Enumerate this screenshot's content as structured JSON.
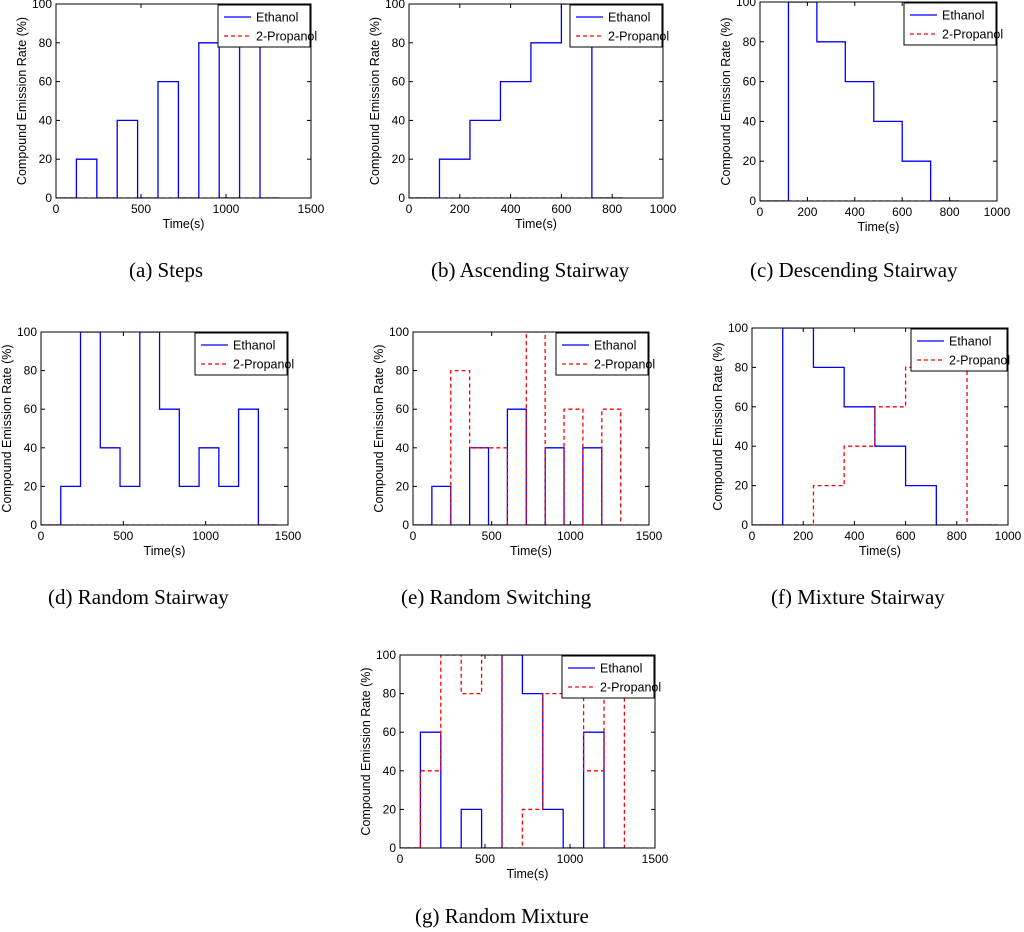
{
  "colors": {
    "ethanol": "#0000ff",
    "propanol": "#ff0000",
    "axis": "#000000"
  },
  "chart_data": [
    {
      "id": "a",
      "type": "line",
      "caption": "(a)  Steps",
      "xlabel": "Time(s)",
      "ylabel": "Compound Emission Rate (%)",
      "xlim": [
        0,
        1500
      ],
      "ylim": [
        0,
        100
      ],
      "xticks": [
        0,
        500,
        1000,
        1500
      ],
      "yticks": [
        0,
        20,
        40,
        60,
        80,
        100
      ],
      "legend": {
        "position": "top-right"
      },
      "series": [
        {
          "name": "Ethanol",
          "style": "solid",
          "points": [
            [
              0,
              0
            ],
            [
              120,
              0
            ],
            [
              120,
              20
            ],
            [
              240,
              20
            ],
            [
              240,
              0
            ],
            [
              360,
              0
            ],
            [
              360,
              40
            ],
            [
              480,
              40
            ],
            [
              480,
              0
            ],
            [
              600,
              0
            ],
            [
              600,
              60
            ],
            [
              720,
              60
            ],
            [
              720,
              0
            ],
            [
              840,
              0
            ],
            [
              840,
              80
            ],
            [
              960,
              80
            ],
            [
              960,
              0
            ],
            [
              1080,
              0
            ],
            [
              1080,
              100
            ],
            [
              1200,
              100
            ],
            [
              1200,
              0
            ],
            [
              1320,
              0
            ]
          ]
        },
        {
          "name": "2-Propanol",
          "style": "dashed",
          "points": [
            [
              0,
              0
            ],
            [
              1320,
              0
            ]
          ]
        }
      ]
    },
    {
      "id": "b",
      "type": "line",
      "caption": "(b)  Ascending Stairway",
      "xlabel": "Time(s)",
      "ylabel": "Compound Emission Rate (%)",
      "xlim": [
        0,
        1000
      ],
      "ylim": [
        0,
        100
      ],
      "xticks": [
        0,
        200,
        400,
        600,
        800,
        1000
      ],
      "yticks": [
        0,
        20,
        40,
        60,
        80,
        100
      ],
      "legend": {
        "position": "top-right"
      },
      "series": [
        {
          "name": "Ethanol",
          "style": "solid",
          "points": [
            [
              0,
              0
            ],
            [
              120,
              0
            ],
            [
              120,
              20
            ],
            [
              240,
              20
            ],
            [
              240,
              40
            ],
            [
              360,
              40
            ],
            [
              360,
              60
            ],
            [
              480,
              60
            ],
            [
              480,
              80
            ],
            [
              600,
              80
            ],
            [
              600,
              100
            ],
            [
              720,
              100
            ],
            [
              720,
              0
            ],
            [
              840,
              0
            ]
          ]
        },
        {
          "name": "2-Propanol",
          "style": "dashed",
          "points": [
            [
              0,
              0
            ],
            [
              840,
              0
            ]
          ]
        }
      ]
    },
    {
      "id": "c",
      "type": "line",
      "caption": "(c)  Descending Stairway",
      "xlabel": "Time(s)",
      "ylabel": "Compound Emission Rate (%)",
      "xlim": [
        0,
        1000
      ],
      "ylim": [
        0,
        100
      ],
      "xticks": [
        0,
        200,
        400,
        600,
        800,
        1000
      ],
      "yticks": [
        0,
        20,
        40,
        60,
        80,
        100
      ],
      "legend": {
        "position": "top-right"
      },
      "series": [
        {
          "name": "Ethanol",
          "style": "solid",
          "points": [
            [
              0,
              0
            ],
            [
              120,
              0
            ],
            [
              120,
              100
            ],
            [
              240,
              100
            ],
            [
              240,
              80
            ],
            [
              360,
              80
            ],
            [
              360,
              60
            ],
            [
              480,
              60
            ],
            [
              480,
              40
            ],
            [
              600,
              40
            ],
            [
              600,
              20
            ],
            [
              720,
              20
            ],
            [
              720,
              0
            ],
            [
              840,
              0
            ]
          ]
        },
        {
          "name": "2-Propanol",
          "style": "dashed",
          "points": [
            [
              0,
              0
            ],
            [
              840,
              0
            ]
          ]
        }
      ]
    },
    {
      "id": "d",
      "type": "line",
      "caption": "(d)  Random Stairway",
      "xlabel": "Time(s)",
      "ylabel": "Compound Emission Rate (%)",
      "xlim": [
        0,
        1500
      ],
      "ylim": [
        0,
        100
      ],
      "xticks": [
        0,
        500,
        1000,
        1500
      ],
      "yticks": [
        0,
        20,
        40,
        60,
        80,
        100
      ],
      "legend": {
        "position": "top-right"
      },
      "series": [
        {
          "name": "Ethanol",
          "style": "solid",
          "points": [
            [
              0,
              0
            ],
            [
              120,
              0
            ],
            [
              120,
              20
            ],
            [
              240,
              20
            ],
            [
              240,
              100
            ],
            [
              360,
              100
            ],
            [
              360,
              40
            ],
            [
              480,
              40
            ],
            [
              480,
              20
            ],
            [
              600,
              20
            ],
            [
              600,
              100
            ],
            [
              720,
              100
            ],
            [
              720,
              60
            ],
            [
              840,
              60
            ],
            [
              840,
              20
            ],
            [
              960,
              20
            ],
            [
              960,
              40
            ],
            [
              1080,
              40
            ],
            [
              1080,
              20
            ],
            [
              1200,
              20
            ],
            [
              1200,
              60
            ],
            [
              1320,
              60
            ],
            [
              1320,
              0
            ],
            [
              1440,
              0
            ]
          ]
        },
        {
          "name": "2-Propanol",
          "style": "dashed",
          "points": [
            [
              0,
              0
            ],
            [
              1440,
              0
            ]
          ]
        }
      ]
    },
    {
      "id": "e",
      "type": "line",
      "caption": "(e)  Random Switching",
      "xlabel": "Time(s)",
      "ylabel": "Compound Emission Rate (%)",
      "xlim": [
        0,
        1500
      ],
      "ylim": [
        0,
        100
      ],
      "xticks": [
        0,
        500,
        1000,
        1500
      ],
      "yticks": [
        0,
        20,
        40,
        60,
        80,
        100
      ],
      "legend": {
        "position": "top-right"
      },
      "series": [
        {
          "name": "Ethanol",
          "style": "solid",
          "points": [
            [
              0,
              0
            ],
            [
              120,
              0
            ],
            [
              120,
              20
            ],
            [
              240,
              20
            ],
            [
              240,
              0
            ],
            [
              360,
              0
            ],
            [
              360,
              40
            ],
            [
              480,
              40
            ],
            [
              480,
              0
            ],
            [
              600,
              0
            ],
            [
              600,
              60
            ],
            [
              720,
              60
            ],
            [
              720,
              0
            ],
            [
              840,
              0
            ],
            [
              840,
              40
            ],
            [
              960,
              40
            ],
            [
              960,
              0
            ],
            [
              1080,
              0
            ],
            [
              1080,
              40
            ],
            [
              1200,
              40
            ],
            [
              1200,
              0
            ],
            [
              1320,
              0
            ]
          ]
        },
        {
          "name": "2-Propanol",
          "style": "dashed",
          "points": [
            [
              0,
              0
            ],
            [
              240,
              0
            ],
            [
              240,
              80
            ],
            [
              360,
              80
            ],
            [
              360,
              40
            ],
            [
              600,
              40
            ],
            [
              600,
              0
            ],
            [
              720,
              0
            ],
            [
              720,
              100
            ],
            [
              840,
              100
            ],
            [
              840,
              0
            ],
            [
              960,
              0
            ],
            [
              960,
              60
            ],
            [
              1080,
              60
            ],
            [
              1080,
              0
            ],
            [
              1200,
              0
            ],
            [
              1200,
              60
            ],
            [
              1320,
              60
            ],
            [
              1320,
              0
            ],
            [
              1440,
              0
            ]
          ]
        }
      ]
    },
    {
      "id": "f",
      "type": "line",
      "caption": "(f)  Mixture Stairway",
      "xlabel": "Time(s)",
      "ylabel": "Compound Emission Rate (%)",
      "xlim": [
        0,
        1000
      ],
      "ylim": [
        0,
        100
      ],
      "xticks": [
        0,
        200,
        400,
        600,
        800,
        1000
      ],
      "yticks": [
        0,
        20,
        40,
        60,
        80,
        100
      ],
      "legend": {
        "position": "top-right"
      },
      "series": [
        {
          "name": "Ethanol",
          "style": "solid",
          "points": [
            [
              0,
              0
            ],
            [
              120,
              0
            ],
            [
              120,
              100
            ],
            [
              240,
              100
            ],
            [
              240,
              80
            ],
            [
              360,
              80
            ],
            [
              360,
              60
            ],
            [
              480,
              60
            ],
            [
              480,
              40
            ],
            [
              600,
              40
            ],
            [
              600,
              20
            ],
            [
              720,
              20
            ],
            [
              720,
              0
            ],
            [
              960,
              0
            ]
          ]
        },
        {
          "name": "2-Propanol",
          "style": "dashed",
          "points": [
            [
              0,
              0
            ],
            [
              240,
              0
            ],
            [
              240,
              20
            ],
            [
              360,
              20
            ],
            [
              360,
              40
            ],
            [
              480,
              40
            ],
            [
              480,
              60
            ],
            [
              600,
              60
            ],
            [
              600,
              80
            ],
            [
              720,
              80
            ],
            [
              720,
              100
            ],
            [
              840,
              100
            ],
            [
              840,
              0
            ],
            [
              960,
              0
            ]
          ]
        }
      ]
    },
    {
      "id": "g",
      "type": "line",
      "caption": "(g)  Random Mixture",
      "xlabel": "Time(s)",
      "ylabel": "Compound Emission Rate (%)",
      "xlim": [
        0,
        1500
      ],
      "ylim": [
        0,
        100
      ],
      "xticks": [
        0,
        500,
        1000,
        1500
      ],
      "yticks": [
        0,
        20,
        40,
        60,
        80,
        100
      ],
      "legend": {
        "position": "top-right"
      },
      "series": [
        {
          "name": "Ethanol",
          "style": "solid",
          "points": [
            [
              0,
              0
            ],
            [
              120,
              0
            ],
            [
              120,
              60
            ],
            [
              240,
              60
            ],
            [
              240,
              0
            ],
            [
              360,
              0
            ],
            [
              360,
              20
            ],
            [
              480,
              20
            ],
            [
              480,
              0
            ],
            [
              600,
              0
            ],
            [
              600,
              100
            ],
            [
              720,
              100
            ],
            [
              720,
              80
            ],
            [
              840,
              80
            ],
            [
              840,
              20
            ],
            [
              960,
              20
            ],
            [
              960,
              0
            ],
            [
              1080,
              0
            ],
            [
              1080,
              60
            ],
            [
              1200,
              60
            ],
            [
              1200,
              0
            ],
            [
              1320,
              0
            ]
          ]
        },
        {
          "name": "2-Propanol",
          "style": "dashed",
          "points": [
            [
              0,
              0
            ],
            [
              120,
              0
            ],
            [
              120,
              40
            ],
            [
              240,
              40
            ],
            [
              240,
              100
            ],
            [
              360,
              100
            ],
            [
              360,
              80
            ],
            [
              480,
              80
            ],
            [
              480,
              100
            ],
            [
              600,
              100
            ],
            [
              600,
              0
            ],
            [
              720,
              0
            ],
            [
              720,
              20
            ],
            [
              840,
              20
            ],
            [
              840,
              80
            ],
            [
              960,
              80
            ],
            [
              960,
              100
            ],
            [
              1080,
              100
            ],
            [
              1080,
              40
            ],
            [
              1200,
              40
            ],
            [
              1200,
              100
            ],
            [
              1320,
              100
            ],
            [
              1320,
              0
            ],
            [
              1440,
              0
            ]
          ]
        }
      ]
    }
  ]
}
